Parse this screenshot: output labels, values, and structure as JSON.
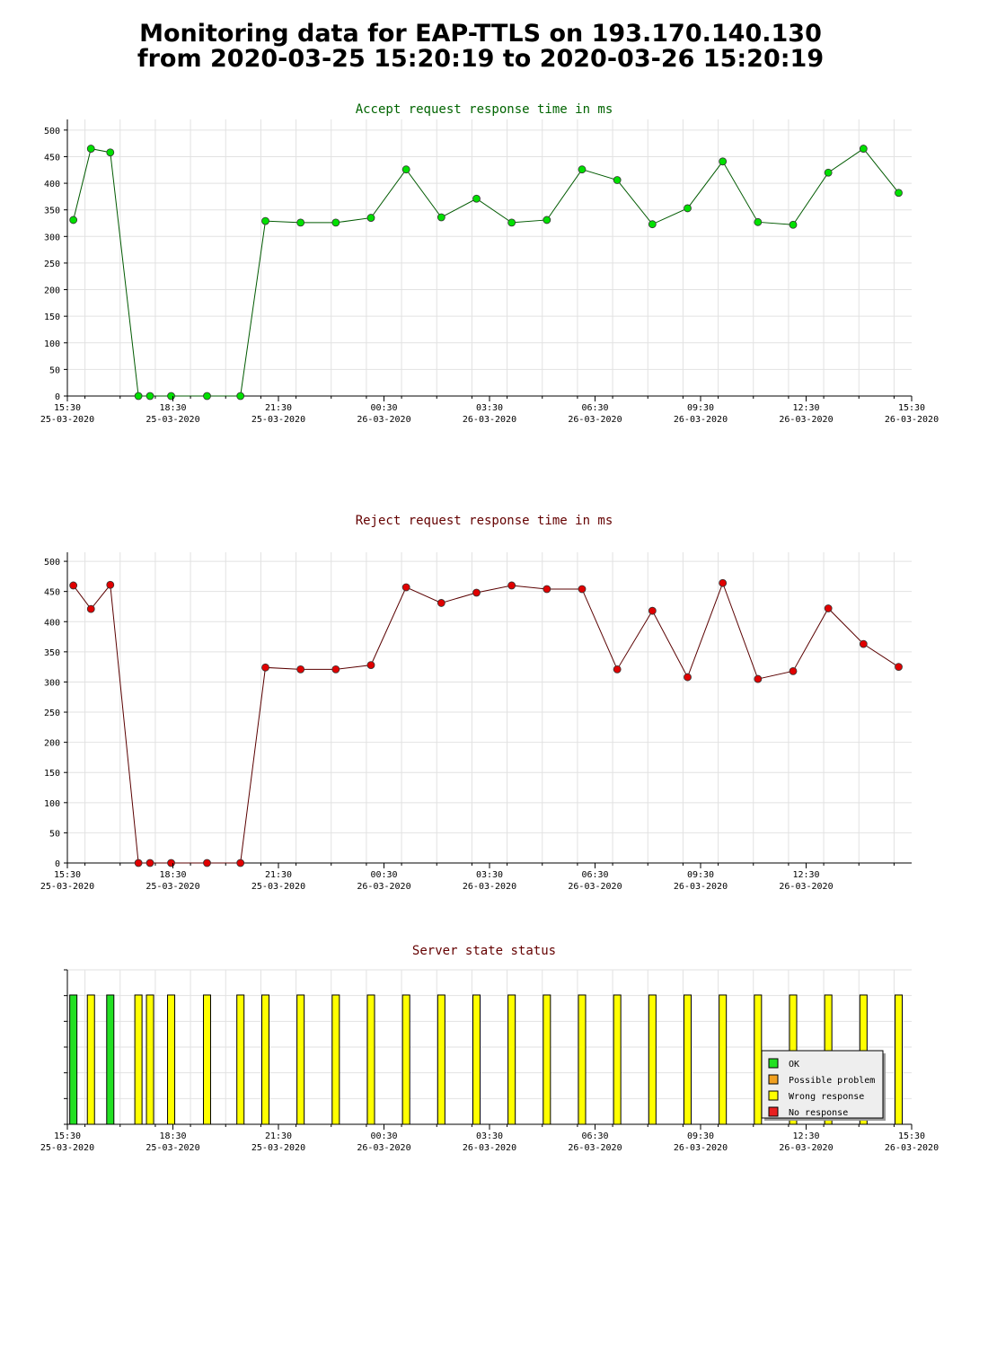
{
  "page": {
    "title_line1": "Monitoring data for EAP-TTLS on 193.170.140.130",
    "title_line2": "from 2020-03-25 15:20:19 to 2020-03-26 15:20:19"
  },
  "chart_data": [
    {
      "type": "line",
      "title": "Accept request response time in ms",
      "title_color": "#006400",
      "line_color": "#005a00",
      "marker_color": "#00e000",
      "ylim": [
        0,
        520
      ],
      "yticks": [
        0,
        50,
        100,
        150,
        200,
        250,
        300,
        350,
        400,
        450,
        500
      ],
      "xlim": [
        15.5,
        39.5
      ],
      "xticks": [
        {
          "value": 15.5,
          "time": "15:30",
          "date": "25-03-2020"
        },
        {
          "value": 18.5,
          "time": "18:30",
          "date": "25-03-2020"
        },
        {
          "value": 21.5,
          "time": "21:30",
          "date": "25-03-2020"
        },
        {
          "value": 24.5,
          "time": "00:30",
          "date": "26-03-2020"
        },
        {
          "value": 27.5,
          "time": "03:30",
          "date": "26-03-2020"
        },
        {
          "value": 30.5,
          "time": "06:30",
          "date": "26-03-2020"
        },
        {
          "value": 33.5,
          "time": "09:30",
          "date": "26-03-2020"
        },
        {
          "value": 36.5,
          "time": "12:30",
          "date": "26-03-2020"
        },
        {
          "value": 39.5,
          "time": "15:30",
          "date": "26-03-2020"
        }
      ],
      "grid": true,
      "x": [
        15.67,
        16.17,
        16.72,
        17.52,
        17.85,
        18.45,
        19.47,
        20.42,
        21.13,
        22.13,
        23.13,
        24.13,
        25.13,
        26.13,
        27.13,
        28.13,
        29.13,
        30.13,
        31.13,
        32.13,
        33.13,
        34.13,
        35.13,
        36.13,
        37.13,
        38.13,
        39.13
      ],
      "y": [
        331,
        465,
        458,
        0,
        0,
        0,
        0,
        0,
        329,
        326,
        326,
        335,
        426,
        336,
        371,
        326,
        331,
        426,
        406,
        323,
        353,
        441,
        327,
        322,
        420,
        465,
        382
      ]
    },
    {
      "type": "line",
      "title": "Reject request response time in ms",
      "title_color": "#640000",
      "line_color": "#5a0000",
      "marker_color": "#e00000",
      "ylim": [
        0,
        515
      ],
      "yticks": [
        0,
        50,
        100,
        150,
        200,
        250,
        300,
        350,
        400,
        450,
        500
      ],
      "xlim": [
        15.5,
        39.5
      ],
      "xticks": [
        {
          "value": 15.5,
          "time": "15:30",
          "date": "25-03-2020"
        },
        {
          "value": 18.5,
          "time": "18:30",
          "date": "25-03-2020"
        },
        {
          "value": 21.5,
          "time": "21:30",
          "date": "25-03-2020"
        },
        {
          "value": 24.5,
          "time": "00:30",
          "date": "26-03-2020"
        },
        {
          "value": 27.5,
          "time": "03:30",
          "date": "26-03-2020"
        },
        {
          "value": 30.5,
          "time": "06:30",
          "date": "26-03-2020"
        },
        {
          "value": 33.5,
          "time": "09:30",
          "date": "26-03-2020"
        },
        {
          "value": 36.5,
          "time": "12:30",
          "date": "26-03-2020"
        }
      ],
      "grid": true,
      "x": [
        15.67,
        16.17,
        16.72,
        17.52,
        17.85,
        18.45,
        19.47,
        20.42,
        21.13,
        22.13,
        23.13,
        24.13,
        25.13,
        26.13,
        27.13,
        28.13,
        29.13,
        30.13,
        31.13,
        32.13,
        33.13,
        34.13,
        35.13,
        36.13,
        37.13,
        38.13,
        39.13
      ],
      "y": [
        460,
        421,
        461,
        0,
        0,
        0,
        0,
        0,
        324,
        321,
        321,
        328,
        457,
        431,
        448,
        460,
        454,
        454,
        321,
        418,
        308,
        464,
        305,
        318,
        422,
        363,
        325
      ]
    },
    {
      "type": "bar",
      "title": "Server state status",
      "title_color": "#640000",
      "xlim": [
        15.5,
        39.5
      ],
      "xticks": [
        {
          "value": 15.5,
          "time": "15:30",
          "date": "25-03-2020"
        },
        {
          "value": 18.5,
          "time": "18:30",
          "date": "25-03-2020"
        },
        {
          "value": 21.5,
          "time": "21:30",
          "date": "25-03-2020"
        },
        {
          "value": 24.5,
          "time": "00:30",
          "date": "26-03-2020"
        },
        {
          "value": 27.5,
          "time": "03:30",
          "date": "26-03-2020"
        },
        {
          "value": 30.5,
          "time": "06:30",
          "date": "26-03-2020"
        },
        {
          "value": 33.5,
          "time": "09:30",
          "date": "26-03-2020"
        },
        {
          "value": 36.5,
          "time": "12:30",
          "date": "26-03-2020"
        },
        {
          "value": 39.5,
          "time": "15:30",
          "date": "26-03-2020"
        }
      ],
      "grid": true,
      "legend_position": "bottom-right",
      "states": [
        {
          "name": "OK",
          "color": "#22e022"
        },
        {
          "name": "Possible problem",
          "color": "#f0a020"
        },
        {
          "name": "Wrong response",
          "color": "#ffff00"
        },
        {
          "name": "No response",
          "color": "#e82020"
        }
      ],
      "x": [
        15.67,
        16.17,
        16.72,
        17.52,
        17.85,
        18.45,
        19.47,
        20.42,
        21.13,
        22.13,
        23.13,
        24.13,
        25.13,
        26.13,
        27.13,
        28.13,
        29.13,
        30.13,
        31.13,
        32.13,
        33.13,
        34.13,
        35.13,
        36.13,
        37.13,
        38.13,
        39.13
      ],
      "status": [
        "OK",
        "Wrong response",
        "OK",
        "Wrong response",
        "Wrong response",
        "Wrong response",
        "Wrong response",
        "Wrong response",
        "Wrong response",
        "Wrong response",
        "Wrong response",
        "Wrong response",
        "Wrong response",
        "Wrong response",
        "Wrong response",
        "Wrong response",
        "Wrong response",
        "Wrong response",
        "Wrong response",
        "Wrong response",
        "Wrong response",
        "Wrong response",
        "Wrong response",
        "Wrong response",
        "Wrong response",
        "Wrong response",
        "Wrong response"
      ]
    }
  ]
}
